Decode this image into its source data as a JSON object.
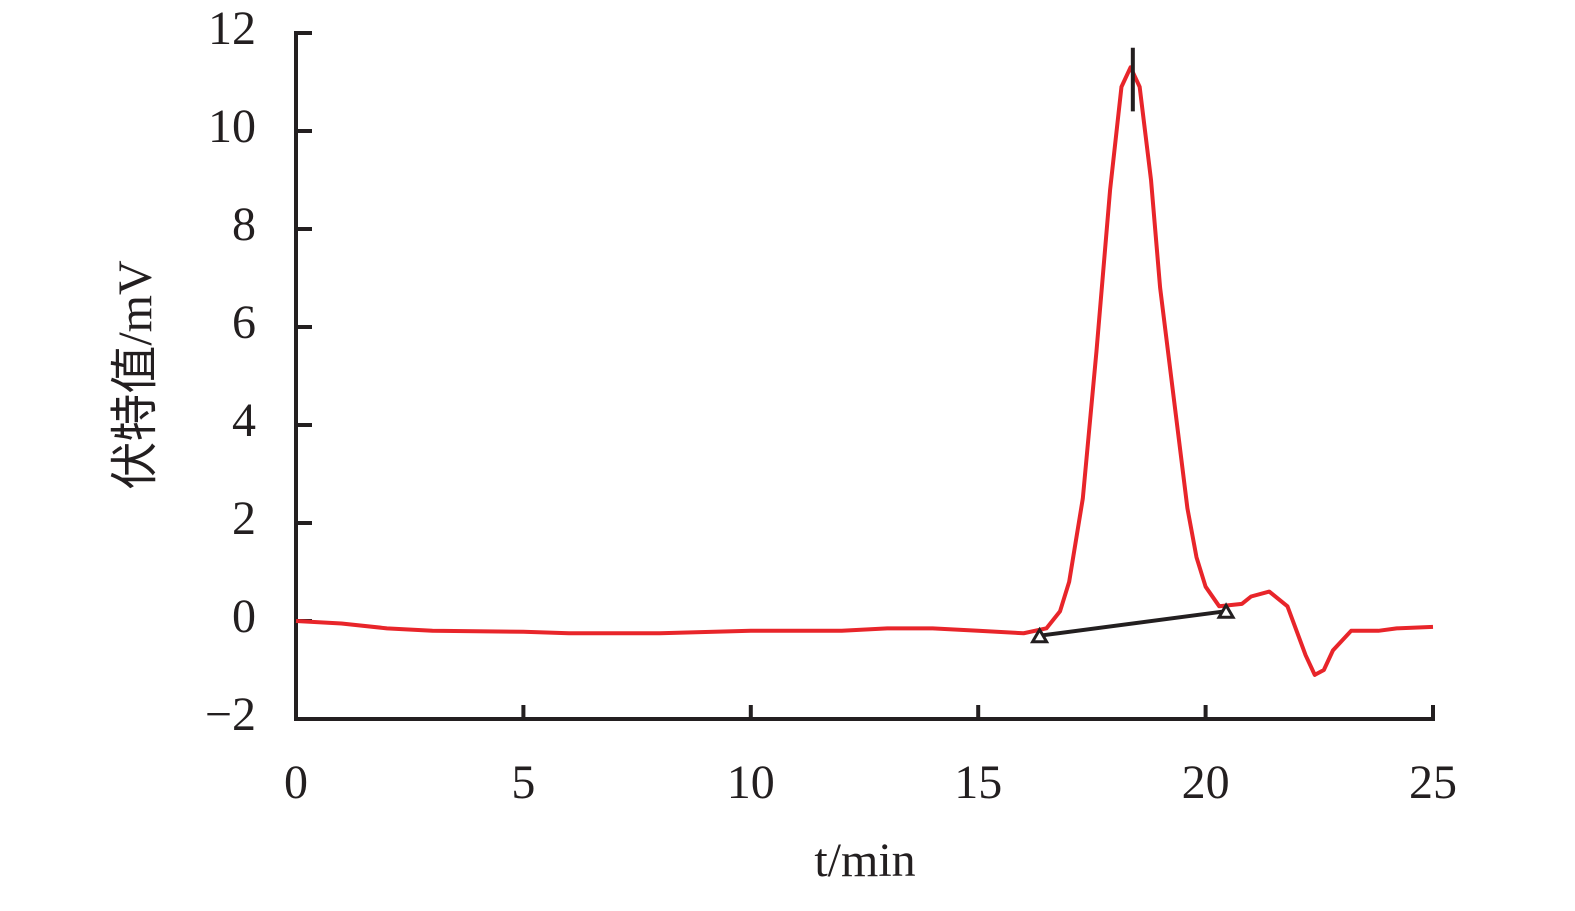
{
  "chart_data": {
    "type": "line",
    "xlabel": "t/min",
    "ylabel": "伏特值/mV",
    "xlim": [
      0,
      25
    ],
    "xticks": [
      0,
      5,
      10,
      15,
      20,
      25
    ],
    "ylim": [
      -2,
      12
    ],
    "yticks": [
      {
        "value": -2,
        "label": "−2"
      },
      0,
      2,
      4,
      6,
      8,
      10,
      12
    ],
    "series": [
      {
        "color": "#e8252a",
        "x": [
          0,
          1,
          2,
          3,
          5,
          6,
          8,
          10,
          12,
          13,
          14,
          15,
          16,
          16.5,
          16.8,
          17,
          17.3,
          17.6,
          17.9,
          18.15,
          18.35,
          18.55,
          18.8,
          19.0,
          19.2,
          19.4,
          19.6,
          19.8,
          20.0,
          20.3,
          20.8,
          21.0,
          21.4,
          21.8,
          22.0,
          22.2,
          22.4,
          22.6,
          22.8,
          23.2,
          23.8,
          24.2,
          25
        ],
        "values": [
          0,
          -0.05,
          -0.15,
          -0.2,
          -0.22,
          -0.25,
          -0.25,
          -0.2,
          -0.2,
          -0.15,
          -0.15,
          -0.2,
          -0.25,
          -0.15,
          0.2,
          0.8,
          2.5,
          5.5,
          8.8,
          10.9,
          11.3,
          10.9,
          9.0,
          6.8,
          5.3,
          3.8,
          2.3,
          1.3,
          0.7,
          0.3,
          0.35,
          0.5,
          0.6,
          0.3,
          -0.2,
          -0.7,
          -1.1,
          -1.0,
          -0.6,
          -0.2,
          -0.2,
          -0.15,
          -0.12
        ]
      }
    ],
    "baseline": {
      "color": "#231f20",
      "x": [
        16.35,
        20.45
      ],
      "values": [
        -0.3,
        0.2
      ]
    },
    "peak_marker": {
      "color": "#231f20",
      "x": 18.4,
      "values": [
        10.4,
        11.7
      ]
    }
  }
}
